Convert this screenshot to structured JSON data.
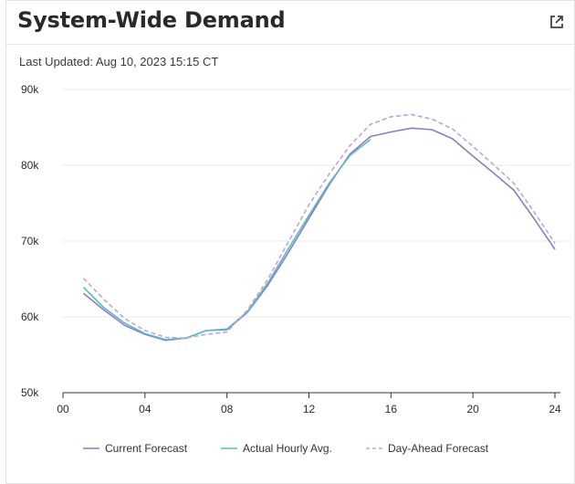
{
  "header": {
    "title": "System-Wide Demand",
    "open_icon": "external-link-icon"
  },
  "last_updated": "Last Updated: Aug 10, 2023 15:15 CT",
  "colors": {
    "current_forecast": "#8a7fbf",
    "actual_hourly": "#5fb8c9",
    "day_ahead": "#b9a7dc",
    "grid": "#e9e9e9",
    "axis": "#333333"
  },
  "chart_data": {
    "type": "line",
    "title": "",
    "xlabel": "",
    "ylabel": "",
    "xlim": [
      0,
      24
    ],
    "ylim": [
      50000,
      90000
    ],
    "x_ticks": [
      "00",
      "04",
      "08",
      "12",
      "16",
      "20",
      "24"
    ],
    "x_tick_values": [
      0,
      4,
      8,
      12,
      16,
      20,
      24
    ],
    "y_ticks": [
      "50k",
      "60k",
      "70k",
      "80k",
      "90k"
    ],
    "y_tick_values": [
      50000,
      60000,
      70000,
      80000,
      90000
    ],
    "grid": "horizontal",
    "legend_position": "bottom",
    "series": [
      {
        "name": "Current Forecast",
        "style": "solid",
        "x": [
          1,
          2,
          3,
          4,
          5,
          6,
          7,
          8,
          9,
          10,
          11,
          12,
          13,
          14,
          15,
          16,
          17,
          18,
          19,
          20,
          21,
          22,
          23,
          24
        ],
        "values": [
          63100,
          60900,
          58900,
          57700,
          56900,
          57200,
          58200,
          58300,
          60600,
          64200,
          68500,
          73000,
          77500,
          81500,
          83800,
          84400,
          84900,
          84700,
          83500,
          81200,
          79000,
          76700,
          72900,
          68900
        ]
      },
      {
        "name": "Actual Hourly Avg.",
        "style": "solid",
        "x": [
          1,
          2,
          3,
          4,
          5,
          6,
          7,
          8,
          9,
          10,
          11,
          12,
          13,
          14,
          15
        ],
        "values": [
          63900,
          61200,
          59200,
          57800,
          57000,
          57200,
          58200,
          58400,
          60700,
          64500,
          69000,
          73400,
          77700,
          81300,
          83400
        ]
      },
      {
        "name": "Day-Ahead Forecast",
        "style": "dashed",
        "x": [
          1,
          2,
          3,
          4,
          5,
          6,
          7,
          8,
          9,
          10,
          11,
          12,
          13,
          14,
          15,
          16,
          17,
          18,
          19,
          20,
          21,
          22,
          23,
          24
        ],
        "values": [
          65100,
          62300,
          59800,
          58200,
          57300,
          57200,
          57700,
          58000,
          60900,
          65000,
          69900,
          74800,
          78900,
          82600,
          85400,
          86400,
          86700,
          86100,
          84800,
          82500,
          80100,
          77600,
          73800,
          69700
        ]
      }
    ]
  }
}
